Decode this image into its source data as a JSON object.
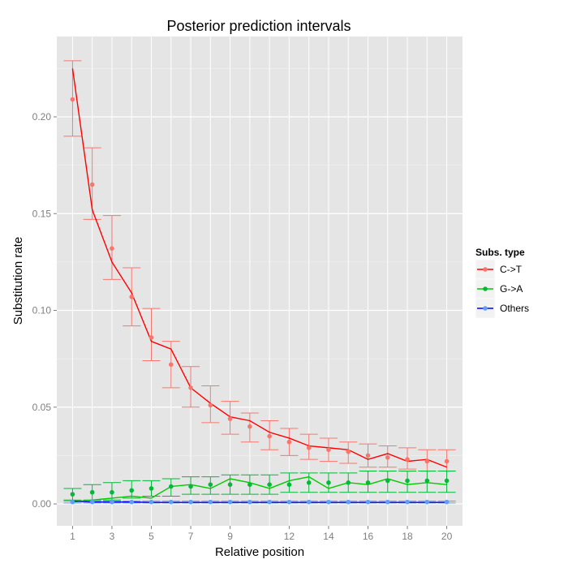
{
  "chart_data": {
    "type": "line",
    "title": "Posterior prediction intervals",
    "xlabel": "Relative position",
    "ylabel": "Substitution rate",
    "xlim": [
      0.2,
      20.8
    ],
    "ylim": [
      -0.0113,
      0.2415
    ],
    "x": [
      1,
      2,
      3,
      4,
      5,
      6,
      7,
      8,
      9,
      10,
      11,
      12,
      13,
      14,
      15,
      16,
      17,
      18,
      19,
      20
    ],
    "x_ticks": [
      1,
      3,
      5,
      7,
      9,
      12,
      14,
      16,
      18,
      20
    ],
    "y_ticks": [
      0.0,
      0.05,
      0.1,
      0.15,
      0.2
    ],
    "y_tick_labels": [
      "0.00",
      "0.05",
      "0.10",
      "0.15",
      "0.20"
    ],
    "legend": {
      "title": "Subs. type",
      "position": "right",
      "entries": [
        "C->T",
        "G->A",
        "Others"
      ]
    },
    "series": [
      {
        "name": "C->T",
        "point_color": "#f8766d",
        "line_color": "#ff0000",
        "observed": [
          0.209,
          0.165,
          0.132,
          0.107,
          0.086,
          0.072,
          0.06,
          0.051,
          0.044,
          0.04,
          0.035,
          0.032,
          0.029,
          0.028,
          0.027,
          0.025,
          0.024,
          0.023,
          0.022,
          0.022
        ],
        "predicted": [
          0.225,
          0.152,
          0.125,
          0.109,
          0.084,
          0.08,
          0.06,
          0.052,
          0.045,
          0.043,
          0.037,
          0.034,
          0.03,
          0.029,
          0.028,
          0.023,
          0.026,
          0.022,
          0.023,
          0.019
        ],
        "lower": [
          0.19,
          0.147,
          0.116,
          0.092,
          0.074,
          0.06,
          0.05,
          0.042,
          0.036,
          0.032,
          0.028,
          0.025,
          0.023,
          0.022,
          0.021,
          0.019,
          0.019,
          0.018,
          0.017,
          0.017
        ],
        "upper": [
          0.229,
          0.184,
          0.149,
          0.122,
          0.101,
          0.084,
          0.071,
          0.061,
          0.053,
          0.047,
          0.043,
          0.039,
          0.036,
          0.034,
          0.032,
          0.031,
          0.03,
          0.029,
          0.028,
          0.028
        ]
      },
      {
        "name": "G->A",
        "point_color": "#00ba38",
        "line_color": "#00cc00",
        "observed": [
          0.005,
          0.006,
          0.006,
          0.007,
          0.008,
          0.009,
          0.009,
          0.01,
          0.01,
          0.01,
          0.01,
          0.01,
          0.011,
          0.011,
          0.011,
          0.011,
          0.012,
          0.012,
          0.012,
          0.012
        ],
        "predicted": [
          0.001,
          0.002,
          0.003,
          0.004,
          0.003,
          0.009,
          0.01,
          0.008,
          0.013,
          0.011,
          0.008,
          0.012,
          0.014,
          0.008,
          0.011,
          0.01,
          0.013,
          0.01,
          0.011,
          0.01
        ],
        "lower": [
          0.002,
          0.002,
          0.002,
          0.003,
          0.004,
          0.004,
          0.005,
          0.005,
          0.005,
          0.005,
          0.005,
          0.006,
          0.006,
          0.006,
          0.006,
          0.006,
          0.006,
          0.006,
          0.006,
          0.006
        ],
        "upper": [
          0.008,
          0.01,
          0.011,
          0.012,
          0.012,
          0.013,
          0.014,
          0.014,
          0.015,
          0.015,
          0.015,
          0.016,
          0.016,
          0.016,
          0.016,
          0.017,
          0.017,
          0.017,
          0.017,
          0.017
        ]
      },
      {
        "name": "Others",
        "point_color": "#619cff",
        "line_color": "#0000ff",
        "observed": [
          0.001,
          0.001,
          0.001,
          0.001,
          0.001,
          0.001,
          0.001,
          0.001,
          0.001,
          0.001,
          0.001,
          0.001,
          0.001,
          0.001,
          0.001,
          0.001,
          0.001,
          0.001,
          0.001,
          0.001
        ],
        "predicted": [
          0.0015,
          0.001,
          0.001,
          0.001,
          0.0008,
          0.0008,
          0.0008,
          0.0008,
          0.0008,
          0.0008,
          0.0008,
          0.0008,
          0.0008,
          0.0008,
          0.0008,
          0.0008,
          0.0008,
          0.0008,
          0.0008,
          0.0008
        ],
        "lower": [
          0.0005,
          0.0005,
          0.0005,
          0.0005,
          0.0005,
          0.0005,
          0.0005,
          0.0005,
          0.0005,
          0.0005,
          0.0005,
          0.0005,
          0.0005,
          0.0005,
          0.0005,
          0.0005,
          0.0005,
          0.0005,
          0.0005,
          0.0005
        ],
        "upper": [
          0.0015,
          0.0015,
          0.0015,
          0.0015,
          0.0015,
          0.0015,
          0.0015,
          0.0015,
          0.0015,
          0.0015,
          0.0015,
          0.0015,
          0.0015,
          0.0015,
          0.0015,
          0.0015,
          0.0015,
          0.0015,
          0.0015,
          0.0015
        ]
      }
    ]
  }
}
